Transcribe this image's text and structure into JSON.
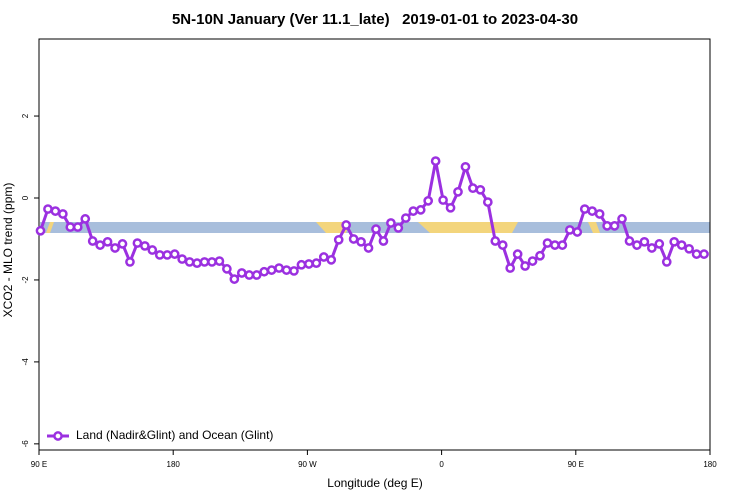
{
  "chart_data": {
    "type": "line",
    "title": "5N-10N January (Ver 11.1_late)   2019-01-01 to 2023-04-30",
    "xlabel": "Longitude (deg E)",
    "ylabel": "XCO2 - MLO trend (ppm)",
    "xlim": [
      90,
      540
    ],
    "xticks": [
      {
        "value": 90,
        "label": "90 E"
      },
      {
        "value": 180,
        "label": "180"
      },
      {
        "value": 270,
        "label": "90 W"
      },
      {
        "value": 360,
        "label": "0"
      },
      {
        "value": 450,
        "label": "90 E"
      },
      {
        "value": 540,
        "label": "180"
      }
    ],
    "ylim": [
      -6.15,
      3.88
    ],
    "yticks": [
      -6,
      -4,
      -2,
      0,
      2
    ],
    "legend": "bottom-left",
    "x": [
      91,
      96,
      101,
      106,
      111,
      116,
      121,
      126,
      131,
      136,
      141,
      146,
      151,
      156,
      161,
      166,
      171,
      176,
      181,
      186,
      191,
      196,
      201,
      206,
      211,
      216,
      221,
      226,
      231,
      236,
      241,
      246,
      251,
      256,
      261,
      266,
      271,
      276,
      281,
      286,
      291,
      296,
      301,
      306,
      311,
      316,
      321,
      326,
      331,
      336,
      341,
      346,
      351,
      356,
      361,
      366,
      371,
      376,
      381,
      386,
      391,
      396,
      401,
      406,
      411,
      416,
      421,
      426,
      431,
      436,
      441,
      446,
      451,
      456,
      461,
      466,
      471,
      476,
      481,
      486,
      491,
      496,
      501,
      506,
      511,
      516,
      521,
      526,
      531,
      536
    ],
    "series": [
      {
        "name": "Land (Nadir&Glint) and Ocean (Glint)",
        "color": "#9b30e0",
        "values": [
          -0.8,
          -0.27,
          -0.32,
          -0.39,
          -0.71,
          -0.71,
          -0.51,
          -1.05,
          -1.15,
          -1.07,
          -1.22,
          -1.12,
          -1.56,
          -1.1,
          -1.17,
          -1.27,
          -1.39,
          -1.39,
          -1.37,
          -1.49,
          -1.56,
          -1.59,
          -1.56,
          -1.56,
          -1.54,
          -1.73,
          -1.98,
          -1.83,
          -1.88,
          -1.88,
          -1.8,
          -1.76,
          -1.71,
          -1.76,
          -1.78,
          -1.63,
          -1.61,
          -1.59,
          -1.44,
          -1.51,
          -1.02,
          -0.66,
          -1.0,
          -1.07,
          -1.22,
          -0.76,
          -1.05,
          -0.61,
          -0.73,
          -0.49,
          -0.32,
          -0.29,
          -0.07,
          0.9,
          -0.05,
          -0.24,
          0.15,
          0.76,
          0.24,
          0.2,
          -0.1,
          -1.05,
          -1.15,
          -1.71,
          -1.37,
          -1.66,
          -1.54,
          -1.41,
          -1.1,
          -1.15,
          -1.15,
          -0.78,
          -0.83,
          -0.27,
          -0.32,
          -0.39,
          -0.68,
          -0.68,
          -0.51,
          -1.05,
          -1.15,
          -1.07,
          -1.22,
          -1.12,
          -1.56,
          -1.07,
          -1.15,
          -1.24,
          -1.37,
          -1.37
        ]
      }
    ]
  }
}
